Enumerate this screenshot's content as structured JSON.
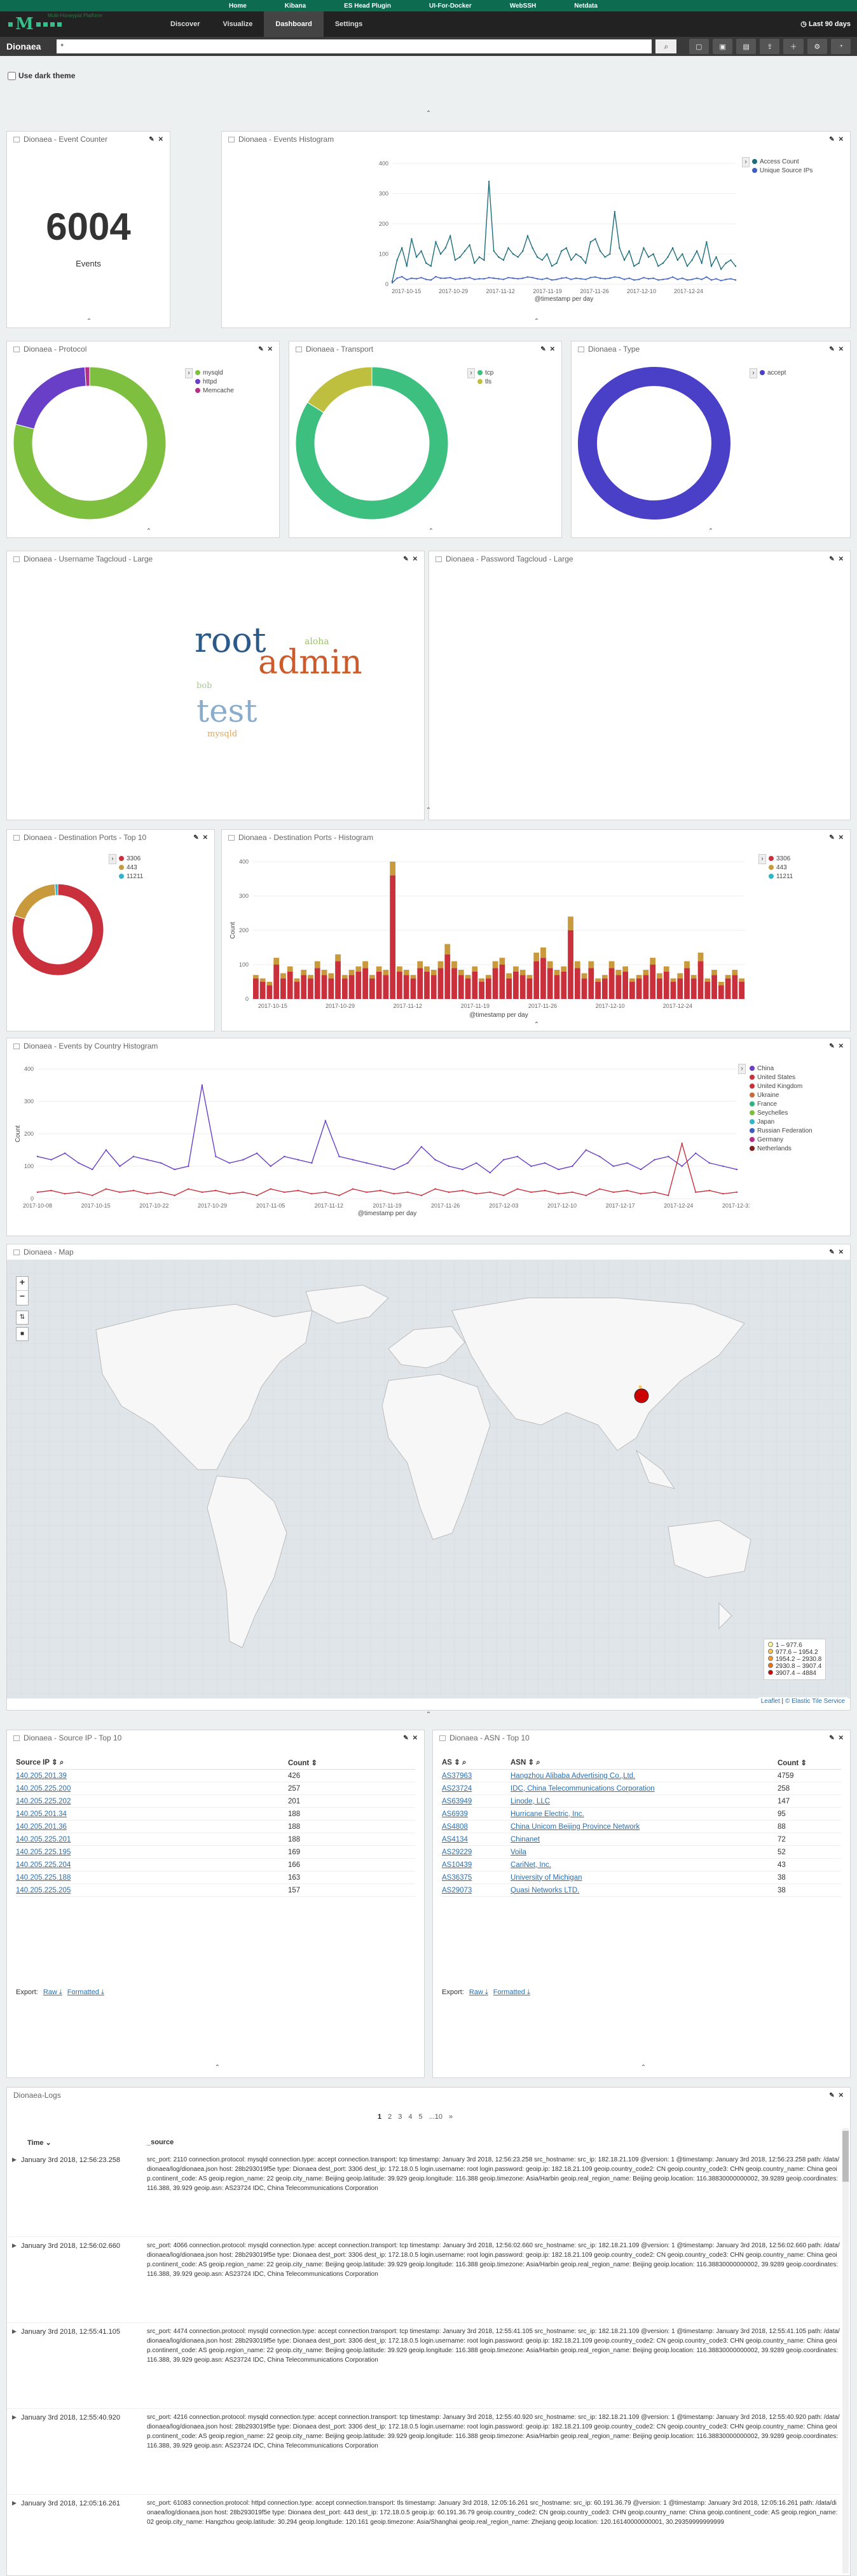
{
  "topnav": {
    "home": "Home",
    "kibana": "Kibana",
    "es": "ES Head Plugin",
    "ui": "UI-For-Docker",
    "webssh": "WebSSH",
    "netdata": "Netdata"
  },
  "brand": {
    "subtitle": "Multi-Honeypot Platform"
  },
  "tabs": [
    "Discover",
    "Visualize",
    "Dashboard",
    "Settings"
  ],
  "timepicker": "Last 90 days",
  "query": {
    "name": "Dionaea",
    "value": "*"
  },
  "dark_theme_label": "Use dark theme",
  "panels": {
    "event_counter": {
      "title": "Dionaea - Event Counter",
      "value": "6004",
      "label": "Events"
    },
    "histogram": {
      "title": "Dionaea - Events Histogram",
      "xlabel": "@timestamp per day",
      "yticks": [
        "0",
        "100",
        "200",
        "300",
        "400"
      ],
      "xticks": [
        "2017-10-15",
        "2017-10-29",
        "2017-11-12",
        "2017-11-19",
        "2017-11-26",
        "2017-12-10",
        "2017-12-24"
      ],
      "legend": [
        "Access Count",
        "Unique Source IPs"
      ],
      "colors": [
        "#1c6d7b",
        "#3f5ec4"
      ]
    },
    "protocol": {
      "title": "Dionaea - Protocol",
      "legend": [
        "mysqld",
        "httpd",
        "Memcache"
      ],
      "colors": [
        "#7fbf3f",
        "#6a3fc7",
        "#b52f8a"
      ]
    },
    "transport": {
      "title": "Dionaea - Transport",
      "legend": [
        "tcp",
        "tls"
      ],
      "colors": [
        "#3dbf7f",
        "#bfbf3f"
      ]
    },
    "type": {
      "title": "Dionaea - Type",
      "legend": [
        "accept"
      ],
      "colors": [
        "#4a3fc7"
      ]
    },
    "username": {
      "title": "Dionaea - Username Tagcloud - Large",
      "words": [
        "root",
        "admin",
        "aloha",
        "test",
        "bob",
        "mysqld"
      ]
    },
    "password": {
      "title": "Dionaea - Password Tagcloud - Large"
    },
    "dports": {
      "title": "Dionaea - Destination Ports - Top 10",
      "legend": [
        "3306",
        "443",
        "11211"
      ],
      "colors": [
        "#c9303c",
        "#c99a3c",
        "#2fb4c9"
      ]
    },
    "dports_hist": {
      "title": "Dionaea - Destination Ports - Histogram",
      "ylabel": "Count",
      "xlabel": "@timestamp per day",
      "yticks": [
        "0",
        "100",
        "200",
        "300",
        "400"
      ],
      "xticks": [
        "2017-10-15",
        "2017-10-29",
        "2017-11-12",
        "2017-11-19",
        "2017-11-26",
        "2017-12-10",
        "2017-12-24"
      ],
      "legend": [
        "3306",
        "443",
        "11211"
      ]
    },
    "country": {
      "title": "Dionaea - Events by Country Histogram",
      "ylabel": "Count",
      "xlabel": "@timestamp per day",
      "yticks": [
        "0",
        "100",
        "200",
        "300",
        "400"
      ],
      "xticks": [
        "2017-10-08",
        "2017-10-15",
        "2017-10-22",
        "2017-10-29",
        "2017-11-05",
        "2017-11-12",
        "2017-11-19",
        "2017-11-26",
        "2017-12-03",
        "2017-12-10",
        "2017-12-17",
        "2017-12-24",
        "2017-12-31"
      ],
      "legend": [
        "China",
        "United States",
        "United Kingdom",
        "Ukraine",
        "France",
        "Seychelles",
        "Japan",
        "Russian Federation",
        "Germany",
        "Netherlands"
      ],
      "colors": [
        "#6a3fc7",
        "#c9303c",
        "#c9303c",
        "#c96a3c",
        "#2fb47f",
        "#7fbf3f",
        "#2fb4c9",
        "#3f5ec4",
        "#b52f8a",
        "#7f1f1f"
      ]
    },
    "map": {
      "title": "Dionaea - Map",
      "legend": [
        "1 – 977.6",
        "977.6 – 1954.2",
        "1954.2 – 2930.8",
        "2930.8 – 3907.4",
        "3907.4 – 4884"
      ],
      "legend_colors": [
        "#ffff99",
        "#fec44f",
        "#fe9929",
        "#ec7014",
        "#cc0000"
      ],
      "attribution_leaflet": "Leaflet",
      "attribution_es": "© Elastic Tile Service"
    },
    "source_ip": {
      "title": "Dionaea - Source IP - Top 10",
      "headers": [
        "Source IP",
        "Count"
      ],
      "rows": [
        [
          "140.205.201.39",
          "426"
        ],
        [
          "140.205.225.200",
          "257"
        ],
        [
          "140.205.225.202",
          "201"
        ],
        [
          "140.205.201.34",
          "188"
        ],
        [
          "140.205.201.36",
          "188"
        ],
        [
          "140.205.225.201",
          "188"
        ],
        [
          "140.205.225.195",
          "169"
        ],
        [
          "140.205.225.204",
          "166"
        ],
        [
          "140.205.225.188",
          "163"
        ],
        [
          "140.205.225.205",
          "157"
        ]
      ]
    },
    "asn": {
      "title": "Dionaea - ASN - Top 10",
      "headers": [
        "AS",
        "ASN",
        "Count"
      ],
      "rows": [
        [
          "AS37963",
          "Hangzhou Alibaba Advertising Co.,Ltd.",
          "4759"
        ],
        [
          "AS23724",
          "IDC, China Telecommunications Corporation",
          "258"
        ],
        [
          "AS63949",
          "Linode, LLC",
          "147"
        ],
        [
          "AS6939",
          "Hurricane Electric, Inc.",
          "95"
        ],
        [
          "AS4808",
          "China Unicom Beijing Province Network",
          "88"
        ],
        [
          "AS4134",
          "Chinanet",
          "72"
        ],
        [
          "AS29229",
          "Voila",
          "52"
        ],
        [
          "AS10439",
          "CariNet, Inc.",
          "43"
        ],
        [
          "AS36375",
          "University of Michigan",
          "38"
        ],
        [
          "AS29073",
          "Quasi Networks LTD.",
          "38"
        ]
      ]
    },
    "export": {
      "label": "Export:",
      "raw": "Raw",
      "formatted": "Formatted"
    },
    "logs": {
      "title": "Dionaea-Logs",
      "pages": [
        "1",
        "2",
        "3",
        "4",
        "5",
        "...10",
        "»"
      ],
      "col_time": "Time",
      "col_source": "_source",
      "rows": [
        {
          "time": "January 3rd 2018, 12:56:23.258",
          "text": "src_port: 2110 connection.protocol: mysqld connection.type: accept connection.transport: tcp timestamp: January 3rd 2018, 12:56:23.258 src_hostname: src_ip: 182.18.21.109 @version: 1 @timestamp: January 3rd 2018, 12:56:23.258 path: /data/dionaea/log/dionaea.json host: 28b293019f5e type: Dionaea dest_port: 3306 dest_ip: 172.18.0.5 login.username: root login.password: geoip.ip: 182.18.21.109 geoip.country_code2: CN geoip.country_code3: CHN geoip.country_name: China geoip.continent_code: AS geoip.region_name: 22 geoip.city_name: Beijing geoip.latitude: 39.929 geoip.longitude: 116.388 geoip.timezone: Asia/Harbin geoip.real_region_name: Beijing geoip.location: 116.38830000000002, 39.9289 geoip.coordinates: 116.388, 39.929 geoip.asn: AS23724 IDC, China Telecommunications Corporation"
        },
        {
          "time": "January 3rd 2018, 12:56:02.660",
          "text": "src_port: 4066 connection.protocol: mysqld connection.type: accept connection.transport: tcp timestamp: January 3rd 2018, 12:56:02.660 src_hostname: src_ip: 182.18.21.109 @version: 1 @timestamp: January 3rd 2018, 12:56:02.660 path: /data/dionaea/log/dionaea.json host: 28b293019f5e type: Dionaea dest_port: 3306 dest_ip: 172.18.0.5 login.username: root login.password: geoip.ip: 182.18.21.109 geoip.country_code2: CN geoip.country_code3: CHN geoip.country_name: China geoip.continent_code: AS geoip.region_name: 22 geoip.city_name: Beijing geoip.latitude: 39.929 geoip.longitude: 116.388 geoip.timezone: Asia/Harbin geoip.real_region_name: Beijing geoip.location: 116.38830000000002, 39.9289 geoip.coordinates: 116.388, 39.929 geoip.asn: AS23724 IDC, China Telecommunications Corporation"
        },
        {
          "time": "January 3rd 2018, 12:55:41.105",
          "text": "src_port: 4474 connection.protocol: mysqld connection.type: accept connection.transport: tcp timestamp: January 3rd 2018, 12:55:41.105 src_hostname: src_ip: 182.18.21.109 @version: 1 @timestamp: January 3rd 2018, 12:55:41.105 path: /data/dionaea/log/dionaea.json host: 28b293019f5e type: Dionaea dest_port: 3306 dest_ip: 172.18.0.5 login.username: root login.password: geoip.ip: 182.18.21.109 geoip.country_code2: CN geoip.country_code3: CHN geoip.country_name: China geoip.continent_code: AS geoip.region_name: 22 geoip.city_name: Beijing geoip.latitude: 39.929 geoip.longitude: 116.388 geoip.timezone: Asia/Harbin geoip.real_region_name: Beijing geoip.location: 116.38830000000002, 39.9289 geoip.coordinates: 116.388, 39.929 geoip.asn: AS23724 IDC, China Telecommunications Corporation"
        },
        {
          "time": "January 3rd 2018, 12:55:40.920",
          "text": "src_port: 4216 connection.protocol: mysqld connection.type: accept connection.transport: tcp timestamp: January 3rd 2018, 12:55:40.920 src_hostname: src_ip: 182.18.21.109 @version: 1 @timestamp: January 3rd 2018, 12:55:40.920 path: /data/dionaea/log/dionaea.json host: 28b293019f5e type: Dionaea dest_port: 3306 dest_ip: 172.18.0.5 login.username: root login.password: geoip.ip: 182.18.21.109 geoip.country_code2: CN geoip.country_code3: CHN geoip.country_name: China geoip.continent_code: AS geoip.region_name: 22 geoip.city_name: Beijing geoip.latitude: 39.929 geoip.longitude: 116.388 geoip.timezone: Asia/Harbin geoip.real_region_name: Beijing geoip.location: 116.38830000000002, 39.9289 geoip.coordinates: 116.388, 39.929 geoip.asn: AS23724 IDC, China Telecommunications Corporation"
        },
        {
          "time": "January 3rd 2018, 12:05:16.261",
          "text": "src_port: 61083 connection.protocol: httpd connection.type: accept connection.transport: tls timestamp: January 3rd 2018, 12:05:16.261 src_hostname: src_ip: 60.191.36.79 @version: 1 @timestamp: January 3rd 2018, 12:05:16.261 path: /data/dionaea/log/dionaea.json host: 28b293019f5e type: Dionaea dest_port: 443 dest_ip: 172.18.0.5 geoip.ip: 60.191.36.79 geoip.country_code2: CN geoip.country_code3: CHN geoip.country_name: China geoip.continent_code: AS geoip.region_name: 02 geoip.city_name: Hangzhou geoip.latitude: 30.294 geoip.longitude: 120.161 geoip.timezone: Asia/Shanghai geoip.real_region_name: Zhejiang geoip.location: 120.16140000000001, 30.29359999999999"
        }
      ]
    }
  },
  "chart_data": [
    {
      "type": "line",
      "title": "Dionaea - Events Histogram",
      "xlabel": "@timestamp per day",
      "ylim": [
        0,
        400
      ],
      "series": [
        {
          "name": "Access Count",
          "values": [
            10,
            80,
            120,
            60,
            150,
            90,
            110,
            70,
            60,
            140,
            100,
            120,
            160,
            80,
            90,
            110,
            130,
            70,
            90,
            80,
            340,
            110,
            90,
            80,
            120,
            100,
            90,
            110,
            160,
            120,
            90,
            80,
            100,
            60,
            70,
            110,
            120,
            80,
            100,
            90,
            70,
            140,
            150,
            110,
            90,
            100,
            240,
            120,
            80,
            110,
            60,
            70,
            120,
            90,
            100,
            60,
            70,
            90,
            120,
            80,
            100,
            60,
            80,
            110,
            70,
            140,
            60,
            90,
            50,
            70,
            80,
            60
          ]
        },
        {
          "name": "Unique Source IPs",
          "values": [
            5,
            20,
            25,
            15,
            20,
            18,
            22,
            16,
            14,
            25,
            20,
            20,
            22,
            16,
            18,
            20,
            22,
            16,
            18,
            18,
            22,
            20,
            18,
            16,
            22,
            20,
            18,
            20,
            24,
            22,
            18,
            16,
            20,
            14,
            16,
            20,
            22,
            16,
            20,
            18,
            16,
            22,
            24,
            20,
            18,
            20,
            24,
            22,
            16,
            20,
            14,
            16,
            22,
            18,
            20,
            14,
            16,
            18,
            24,
            16,
            20,
            14,
            16,
            20,
            16,
            24,
            14,
            18,
            12,
            16,
            18,
            14
          ]
        }
      ]
    },
    {
      "type": "pie",
      "title": "Dionaea - Protocol",
      "labels": [
        "mysqld",
        "httpd",
        "Memcache"
      ],
      "values": [
        79,
        20,
        1
      ]
    },
    {
      "type": "pie",
      "title": "Dionaea - Transport",
      "labels": [
        "tcp",
        "tls"
      ],
      "values": [
        84,
        16
      ]
    },
    {
      "type": "pie",
      "title": "Dionaea - Type",
      "labels": [
        "accept"
      ],
      "values": [
        100
      ]
    },
    {
      "type": "pie",
      "title": "Dionaea - Destination Ports - Top 10",
      "labels": [
        "3306",
        "443",
        "11211"
      ],
      "values": [
        80,
        19,
        1
      ]
    },
    {
      "type": "bar",
      "title": "Dionaea - Destination Ports - Histogram",
      "ylabel": "Count",
      "xlabel": "@timestamp per day",
      "ylim": [
        0,
        400
      ],
      "series": [
        {
          "name": "3306",
          "values": [
            60,
            50,
            40,
            100,
            60,
            80,
            50,
            70,
            60,
            90,
            70,
            60,
            110,
            60,
            70,
            80,
            90,
            60,
            80,
            70,
            360,
            80,
            70,
            60,
            90,
            80,
            70,
            90,
            130,
            90,
            70,
            60,
            80,
            50,
            60,
            90,
            100,
            60,
            80,
            70,
            60,
            110,
            120,
            90,
            70,
            80,
            200,
            90,
            60,
            90,
            50,
            60,
            90,
            70,
            80,
            50,
            60,
            70,
            100,
            60,
            80,
            50,
            60,
            90,
            60,
            110,
            50,
            70,
            40,
            60,
            70,
            50
          ]
        },
        {
          "name": "443",
          "values": [
            10,
            10,
            10,
            20,
            15,
            15,
            10,
            15,
            10,
            20,
            15,
            15,
            20,
            10,
            15,
            15,
            20,
            10,
            15,
            15,
            40,
            15,
            15,
            10,
            20,
            15,
            15,
            20,
            30,
            20,
            15,
            10,
            15,
            10,
            10,
            20,
            20,
            15,
            15,
            15,
            10,
            25,
            30,
            20,
            15,
            15,
            40,
            20,
            15,
            20,
            10,
            10,
            20,
            15,
            15,
            10,
            10,
            15,
            20,
            15,
            15,
            10,
            15,
            20,
            10,
            25,
            10,
            15,
            10,
            10,
            15,
            10
          ]
        }
      ]
    },
    {
      "type": "line",
      "title": "Dionaea - Events by Country Histogram",
      "ylabel": "Count",
      "xlabel": "@timestamp per day",
      "ylim": [
        0,
        400
      ],
      "series": [
        {
          "name": "China",
          "values": [
            130,
            120,
            140,
            110,
            90,
            150,
            100,
            130,
            120,
            110,
            90,
            100,
            350,
            130,
            110,
            120,
            140,
            100,
            130,
            120,
            110,
            240,
            130,
            120,
            110,
            100,
            90,
            110,
            160,
            120,
            100,
            90,
            110,
            80,
            120,
            130,
            100,
            110,
            90,
            100,
            150,
            130,
            100,
            110,
            90,
            120,
            130,
            100,
            140,
            110,
            100,
            90
          ]
        },
        {
          "name": "United States",
          "values": [
            20,
            25,
            15,
            20,
            10,
            30,
            20,
            25,
            15,
            20,
            10,
            30,
            20,
            25,
            15,
            20,
            10,
            30,
            20,
            25,
            15,
            20,
            10,
            30,
            20,
            25,
            15,
            20,
            10,
            30,
            20,
            25,
            15,
            20,
            10,
            30,
            20,
            25,
            15,
            20,
            10,
            30,
            20,
            25,
            15,
            20,
            10,
            170,
            20,
            25,
            15,
            20
          ]
        }
      ]
    },
    {
      "type": "table",
      "title": "Dionaea - Source IP - Top 10"
    },
    {
      "type": "table",
      "title": "Dionaea - ASN - Top 10"
    }
  ]
}
